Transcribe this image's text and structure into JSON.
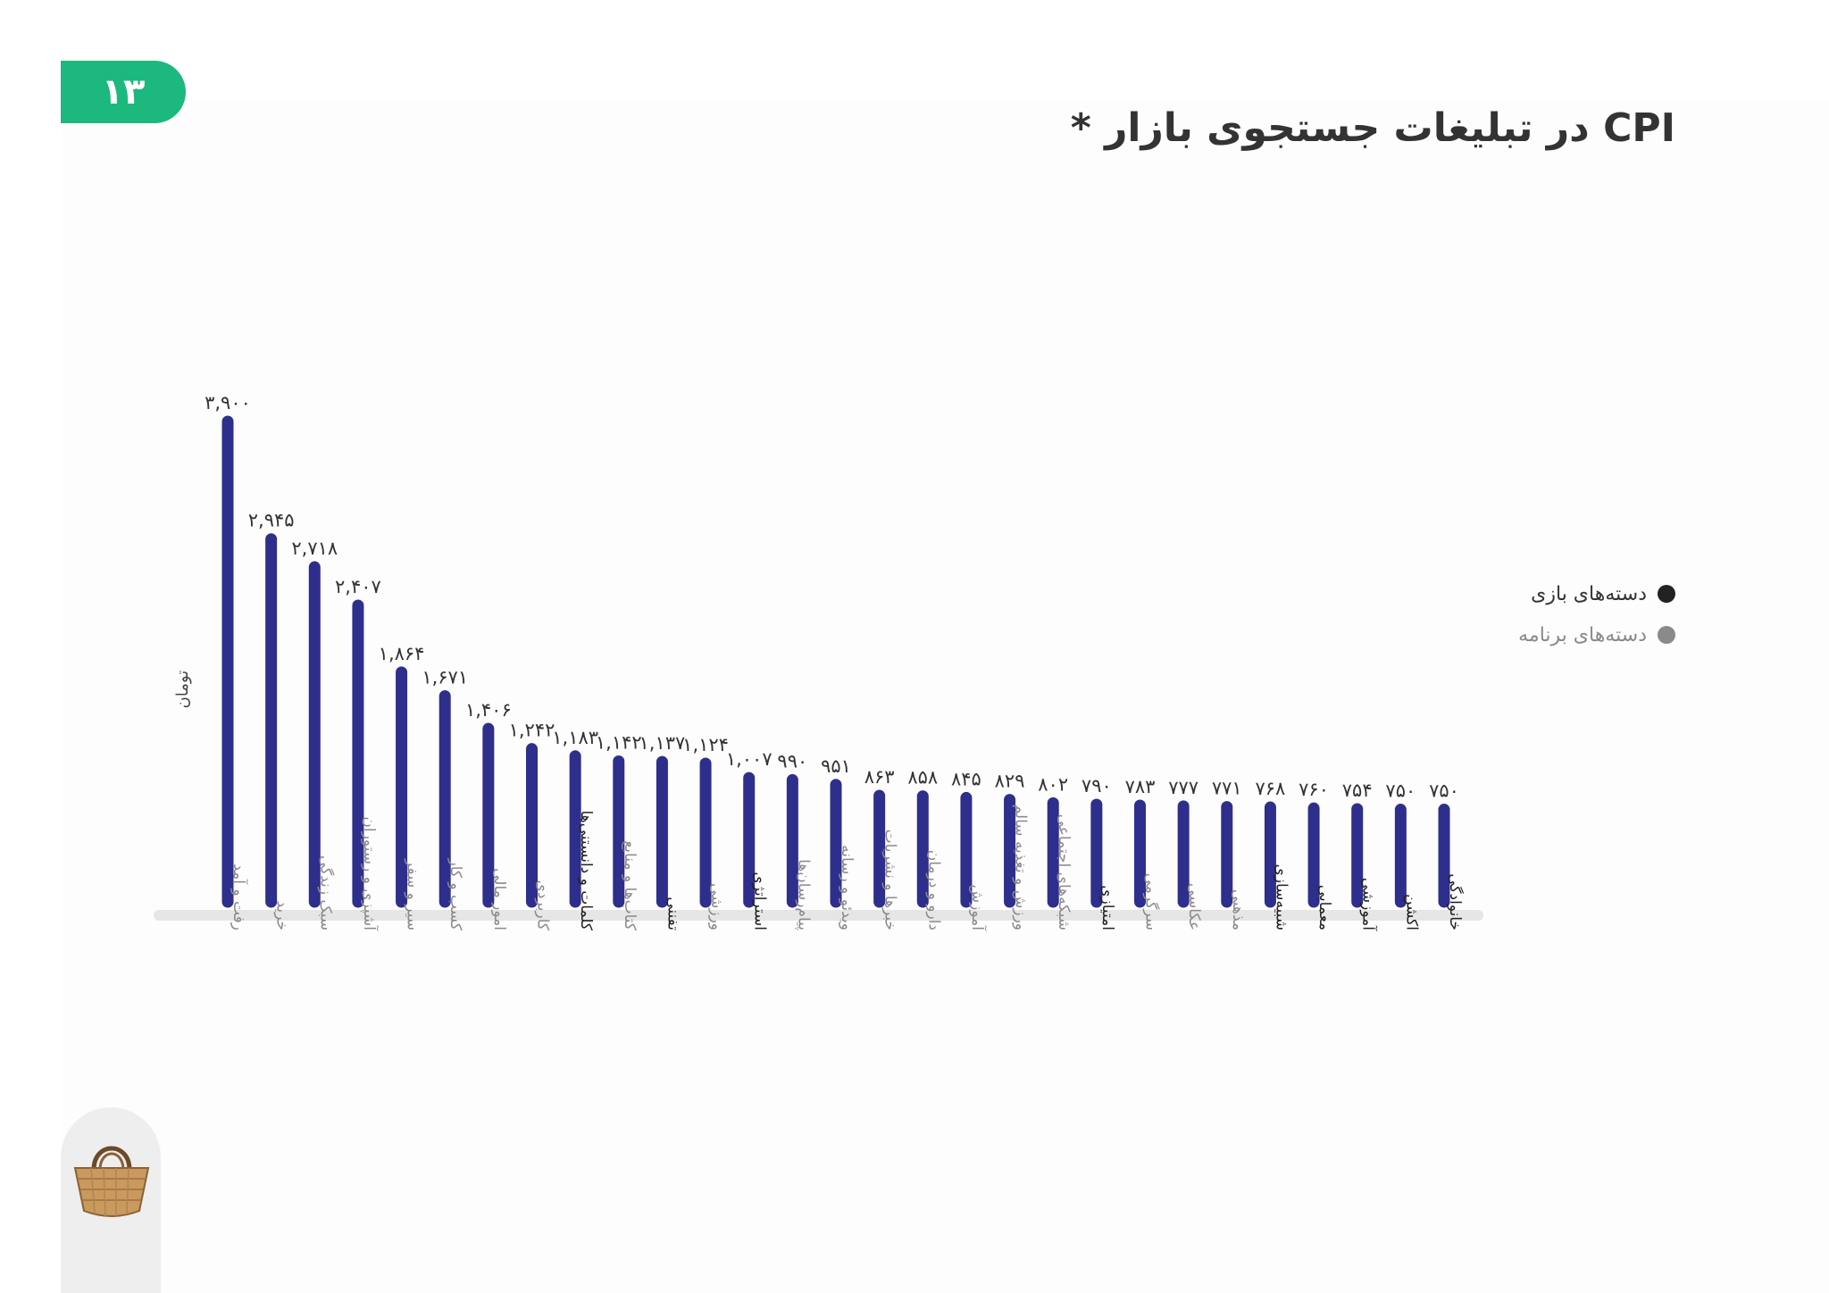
{
  "page": {
    "number": "۱۳",
    "title": "CPI در تبلیغات جستجوی بازار *"
  },
  "legend": [
    {
      "label": "دسته‌های بازی",
      "color": "#222222",
      "text_color": "#333333"
    },
    {
      "label": "دسته‌های برنامه",
      "color": "#8a8a8a",
      "text_color": "#8a8a8a"
    }
  ],
  "colors": {
    "bar": "#2e2e8c",
    "baseline": "#e6e6e6",
    "game_label": "#222222",
    "app_label": "#8a8a8a",
    "badge": "#1db87e"
  },
  "chart_data": {
    "type": "bar",
    "title": "CPI در تبلیغات جستجوی بازار *",
    "ylabel": "تومان",
    "xlabel": "",
    "grid": false,
    "legend_position": "right",
    "ylim": [
      0,
      3900
    ],
    "categories": [
      {
        "label": "رفت و آمد",
        "group": "app"
      },
      {
        "label": "خرید",
        "group": "app"
      },
      {
        "label": "سبک زندگی",
        "group": "app"
      },
      {
        "label": "آشپزی و رستوران",
        "group": "app"
      },
      {
        "label": "سیر و سفر",
        "group": "app"
      },
      {
        "label": "کسب و کار",
        "group": "app"
      },
      {
        "label": "امور مالی",
        "group": "app"
      },
      {
        "label": "کاربردی",
        "group": "app"
      },
      {
        "label": "کلمات و دانستنی‌ها",
        "group": "game"
      },
      {
        "label": "کتاب‌ها و منابع",
        "group": "app"
      },
      {
        "label": "تفننی",
        "group": "game"
      },
      {
        "label": "ورزشی",
        "group": "app"
      },
      {
        "label": "استراتژی",
        "group": "game"
      },
      {
        "label": "پیام‌رسان‌ها",
        "group": "app"
      },
      {
        "label": "ویدئو و رسانه",
        "group": "app"
      },
      {
        "label": "خبرها و نشریات",
        "group": "app"
      },
      {
        "label": "دارو و درمان",
        "group": "app"
      },
      {
        "label": "آموزش",
        "group": "app"
      },
      {
        "label": "ورزش و تغذیه سالم",
        "group": "app"
      },
      {
        "label": "شبکه‌های اجتماعی",
        "group": "app"
      },
      {
        "label": "امتیازی",
        "group": "game"
      },
      {
        "label": "سرگرمی",
        "group": "app"
      },
      {
        "label": "عکاسی",
        "group": "app"
      },
      {
        "label": "مذهبی",
        "group": "app"
      },
      {
        "label": "شبیه‌سازی",
        "group": "game"
      },
      {
        "label": "معمایی",
        "group": "game"
      },
      {
        "label": "آموزشی",
        "group": "game"
      },
      {
        "label": "اکشن",
        "group": "game"
      },
      {
        "label": "خانوادگی",
        "group": "game"
      }
    ],
    "values": [
      3900,
      2945,
      2718,
      2407,
      1864,
      1671,
      1406,
      1242,
      1183,
      1142,
      1137,
      1124,
      1007,
      990,
      951,
      863,
      858,
      845,
      829,
      802,
      790,
      783,
      777,
      771,
      768,
      760,
      754,
      750,
      750
    ],
    "value_labels": [
      "۳,۹۰۰",
      "۲,۹۴۵",
      "۲,۷۱۸",
      "۲,۴۰۷",
      "۱,۸۶۴",
      "۱,۶۷۱",
      "۱,۴۰۶",
      "۱,۲۴۲",
      "۱,۱۸۳",
      "۱,۱۴۲",
      "۱,۱۳۷",
      "۱,۱۲۴",
      "۱,۰۰۷",
      "۹۹۰",
      "۹۵۱",
      "۸۶۳",
      "۸۵۸",
      "۸۴۵",
      "۸۲۹",
      "۸۰۲",
      "۷۹۰",
      "۷۸۳",
      "۷۷۷",
      "۷۷۱",
      "۷۶۸",
      "۷۶۰",
      "۷۵۴",
      "۷۵۰",
      "۷۵۰"
    ]
  }
}
